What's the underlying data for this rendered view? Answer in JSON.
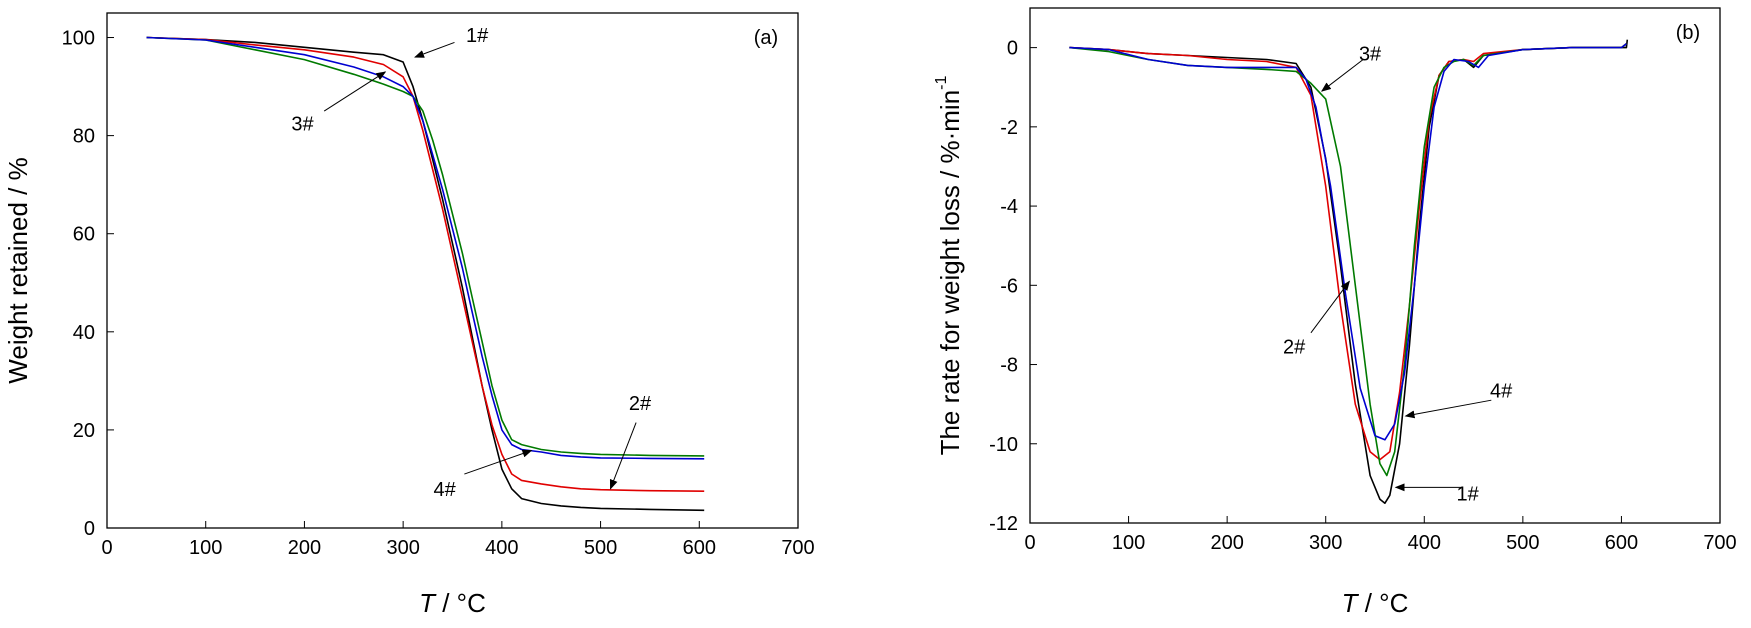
{
  "chart_data": [
    {
      "panel_label": "(a)",
      "type": "line",
      "xlabel_var": "T",
      "xlabel_unit": " / °C",
      "ylabel": "Weight retained / %",
      "xlim": [
        0,
        700
      ],
      "ylim": [
        0,
        105
      ],
      "xticks": [
        "0",
        "100",
        "200",
        "300",
        "400",
        "500",
        "600",
        "700"
      ],
      "yticks": [
        "0",
        "20",
        "40",
        "60",
        "80",
        "100"
      ],
      "grid": false,
      "series": [
        {
          "name": "1#",
          "color": "#000000",
          "x": [
            40,
            100,
            150,
            200,
            250,
            280,
            300,
            310,
            320,
            330,
            340,
            350,
            360,
            370,
            380,
            390,
            400,
            410,
            420,
            440,
            460,
            480,
            500,
            550,
            605
          ],
          "y": [
            100,
            99.6,
            99,
            98,
            97,
            96.5,
            95,
            90,
            83,
            75,
            67,
            58,
            49,
            39,
            29,
            20,
            12,
            8,
            6,
            5,
            4.5,
            4.2,
            4,
            3.8,
            3.6
          ]
        },
        {
          "name": "2#",
          "color": "#e00000",
          "x": [
            40,
            100,
            150,
            200,
            250,
            280,
            300,
            310,
            320,
            330,
            340,
            350,
            360,
            370,
            380,
            390,
            400,
            410,
            420,
            440,
            460,
            480,
            500,
            550,
            605
          ],
          "y": [
            100,
            99.6,
            98.5,
            97.5,
            96,
            94.5,
            92,
            88,
            81,
            73,
            65,
            56,
            47,
            38,
            29,
            21,
            15,
            11,
            9.7,
            9,
            8.4,
            8,
            7.8,
            7.6,
            7.5
          ]
        },
        {
          "name": "3#",
          "color": "#007a00",
          "x": [
            40,
            100,
            150,
            200,
            250,
            280,
            300,
            310,
            320,
            330,
            340,
            350,
            360,
            370,
            380,
            390,
            400,
            410,
            420,
            440,
            460,
            480,
            500,
            550,
            605
          ],
          "y": [
            100,
            99.5,
            97.5,
            95.5,
            92.5,
            90.5,
            89,
            88,
            85,
            79,
            72,
            64,
            56,
            47,
            38,
            29,
            22,
            18,
            17,
            16,
            15.5,
            15.2,
            15,
            14.8,
            14.7
          ]
        },
        {
          "name": "4#",
          "color": "#0000d0",
          "x": [
            40,
            100,
            150,
            200,
            250,
            280,
            300,
            310,
            320,
            330,
            340,
            350,
            360,
            370,
            380,
            390,
            400,
            410,
            420,
            440,
            460,
            480,
            500,
            550,
            605
          ],
          "y": [
            100,
            99.5,
            98,
            96.5,
            94,
            92,
            90,
            88,
            83,
            76,
            69,
            61,
            53,
            44,
            35,
            27,
            20,
            17,
            16,
            15.5,
            14.8,
            14.5,
            14.3,
            14.2,
            14.1
          ]
        }
      ],
      "annotations": [
        {
          "text": "1#",
          "label_at": [
            375,
            100.5
          ],
          "arrow_from": [
            352,
            99
          ],
          "arrow_to": [
            312,
            96
          ]
        },
        {
          "text": "3#",
          "label_at": [
            198,
            82.5
          ],
          "arrow_from": [
            220,
            85
          ],
          "arrow_to": [
            282,
            93
          ]
        },
        {
          "text": "2#",
          "label_at": [
            540,
            25.5
          ],
          "arrow_from": [
            536,
            21.5
          ],
          "arrow_to": [
            510,
            8
          ]
        },
        {
          "text": "4#",
          "label_at": [
            342,
            8
          ],
          "arrow_from": [
            362,
            11
          ],
          "arrow_to": [
            430,
            15.8
          ]
        }
      ]
    },
    {
      "panel_label": "(b)",
      "type": "line",
      "xlabel_var": "T",
      "xlabel_unit": " / °C",
      "ylabel": "The rate for weight loss / %·min",
      "ylabel_sup": "-1",
      "xlim": [
        0,
        700
      ],
      "ylim": [
        -12,
        1
      ],
      "xticks": [
        "0",
        "100",
        "200",
        "300",
        "400",
        "500",
        "600",
        "700"
      ],
      "yticks": [
        "-12",
        "-10",
        "-8",
        "-6",
        "-4",
        "-2",
        "0"
      ],
      "grid": false,
      "series": [
        {
          "name": "1#",
          "color": "#000000",
          "x": [
            40,
            80,
            120,
            160,
            200,
            240,
            270,
            285,
            300,
            315,
            330,
            345,
            355,
            360,
            365,
            375,
            385,
            395,
            405,
            415,
            425,
            440,
            450,
            460,
            500,
            550,
            600,
            605,
            606
          ],
          "y": [
            0,
            -0.05,
            -0.15,
            -0.2,
            -0.25,
            -0.3,
            -0.4,
            -1,
            -2.8,
            -5.5,
            -8.5,
            -10.8,
            -11.4,
            -11.5,
            -11.3,
            -10,
            -7.5,
            -4.5,
            -2,
            -0.7,
            -0.35,
            -0.3,
            -0.5,
            -0.2,
            -0.05,
            0,
            0,
            0,
            0.2
          ]
        },
        {
          "name": "2#",
          "color": "#e00000",
          "x": [
            40,
            80,
            120,
            160,
            200,
            240,
            270,
            285,
            300,
            315,
            330,
            345,
            355,
            365,
            375,
            385,
            395,
            405,
            415,
            425,
            440,
            450,
            460,
            500,
            550,
            600,
            605
          ],
          "y": [
            0,
            -0.05,
            -0.15,
            -0.2,
            -0.3,
            -0.35,
            -0.5,
            -1.2,
            -3.5,
            -6.5,
            -9,
            -10.2,
            -10.4,
            -10.2,
            -8.7,
            -6.5,
            -4,
            -1.8,
            -0.7,
            -0.35,
            -0.3,
            -0.35,
            -0.15,
            -0.05,
            0,
            0,
            0.1
          ]
        },
        {
          "name": "3#",
          "color": "#007a00",
          "x": [
            40,
            80,
            120,
            160,
            200,
            240,
            270,
            285,
            300,
            315,
            330,
            345,
            355,
            362,
            370,
            380,
            390,
            400,
            410,
            420,
            430,
            440,
            450,
            460,
            500,
            550,
            600,
            605
          ],
          "y": [
            0,
            -0.1,
            -0.3,
            -0.45,
            -0.5,
            -0.55,
            -0.6,
            -0.9,
            -1.3,
            -3,
            -6,
            -9,
            -10.5,
            -10.8,
            -10.2,
            -8,
            -5,
            -2.5,
            -1,
            -0.5,
            -0.35,
            -0.3,
            -0.45,
            -0.2,
            -0.05,
            0,
            0,
            0.1
          ]
        },
        {
          "name": "4#",
          "color": "#0000d0",
          "x": [
            40,
            80,
            120,
            160,
            200,
            240,
            270,
            280,
            290,
            305,
            320,
            335,
            350,
            360,
            370,
            380,
            390,
            400,
            410,
            420,
            430,
            445,
            455,
            465,
            500,
            550,
            600,
            605
          ],
          "y": [
            0,
            -0.05,
            -0.3,
            -0.45,
            -0.5,
            -0.5,
            -0.5,
            -0.8,
            -1.5,
            -3.5,
            -6.2,
            -8.6,
            -9.8,
            -9.9,
            -9.5,
            -8.2,
            -6,
            -3.5,
            -1.5,
            -0.6,
            -0.3,
            -0.35,
            -0.5,
            -0.2,
            -0.05,
            0,
            0,
            0.1
          ]
        }
      ],
      "annotations": [
        {
          "text": "3#",
          "label_at": [
            345,
            -0.15
          ],
          "arrow_from": [
            338,
            -0.3
          ],
          "arrow_to": [
            296,
            -1.1
          ]
        },
        {
          "text": "2#",
          "label_at": [
            268,
            -7.55
          ],
          "arrow_from": [
            285,
            -7.2
          ],
          "arrow_to": [
            324,
            -5.9
          ]
        },
        {
          "text": "4#",
          "label_at": [
            478,
            -8.65
          ],
          "arrow_from": [
            468,
            -8.9
          ],
          "arrow_to": [
            381,
            -9.3
          ]
        },
        {
          "text": "1#",
          "label_at": [
            444,
            -11.25
          ],
          "arrow_from": [
            438,
            -11.1
          ],
          "arrow_to": [
            371,
            -11.1
          ]
        }
      ]
    }
  ]
}
